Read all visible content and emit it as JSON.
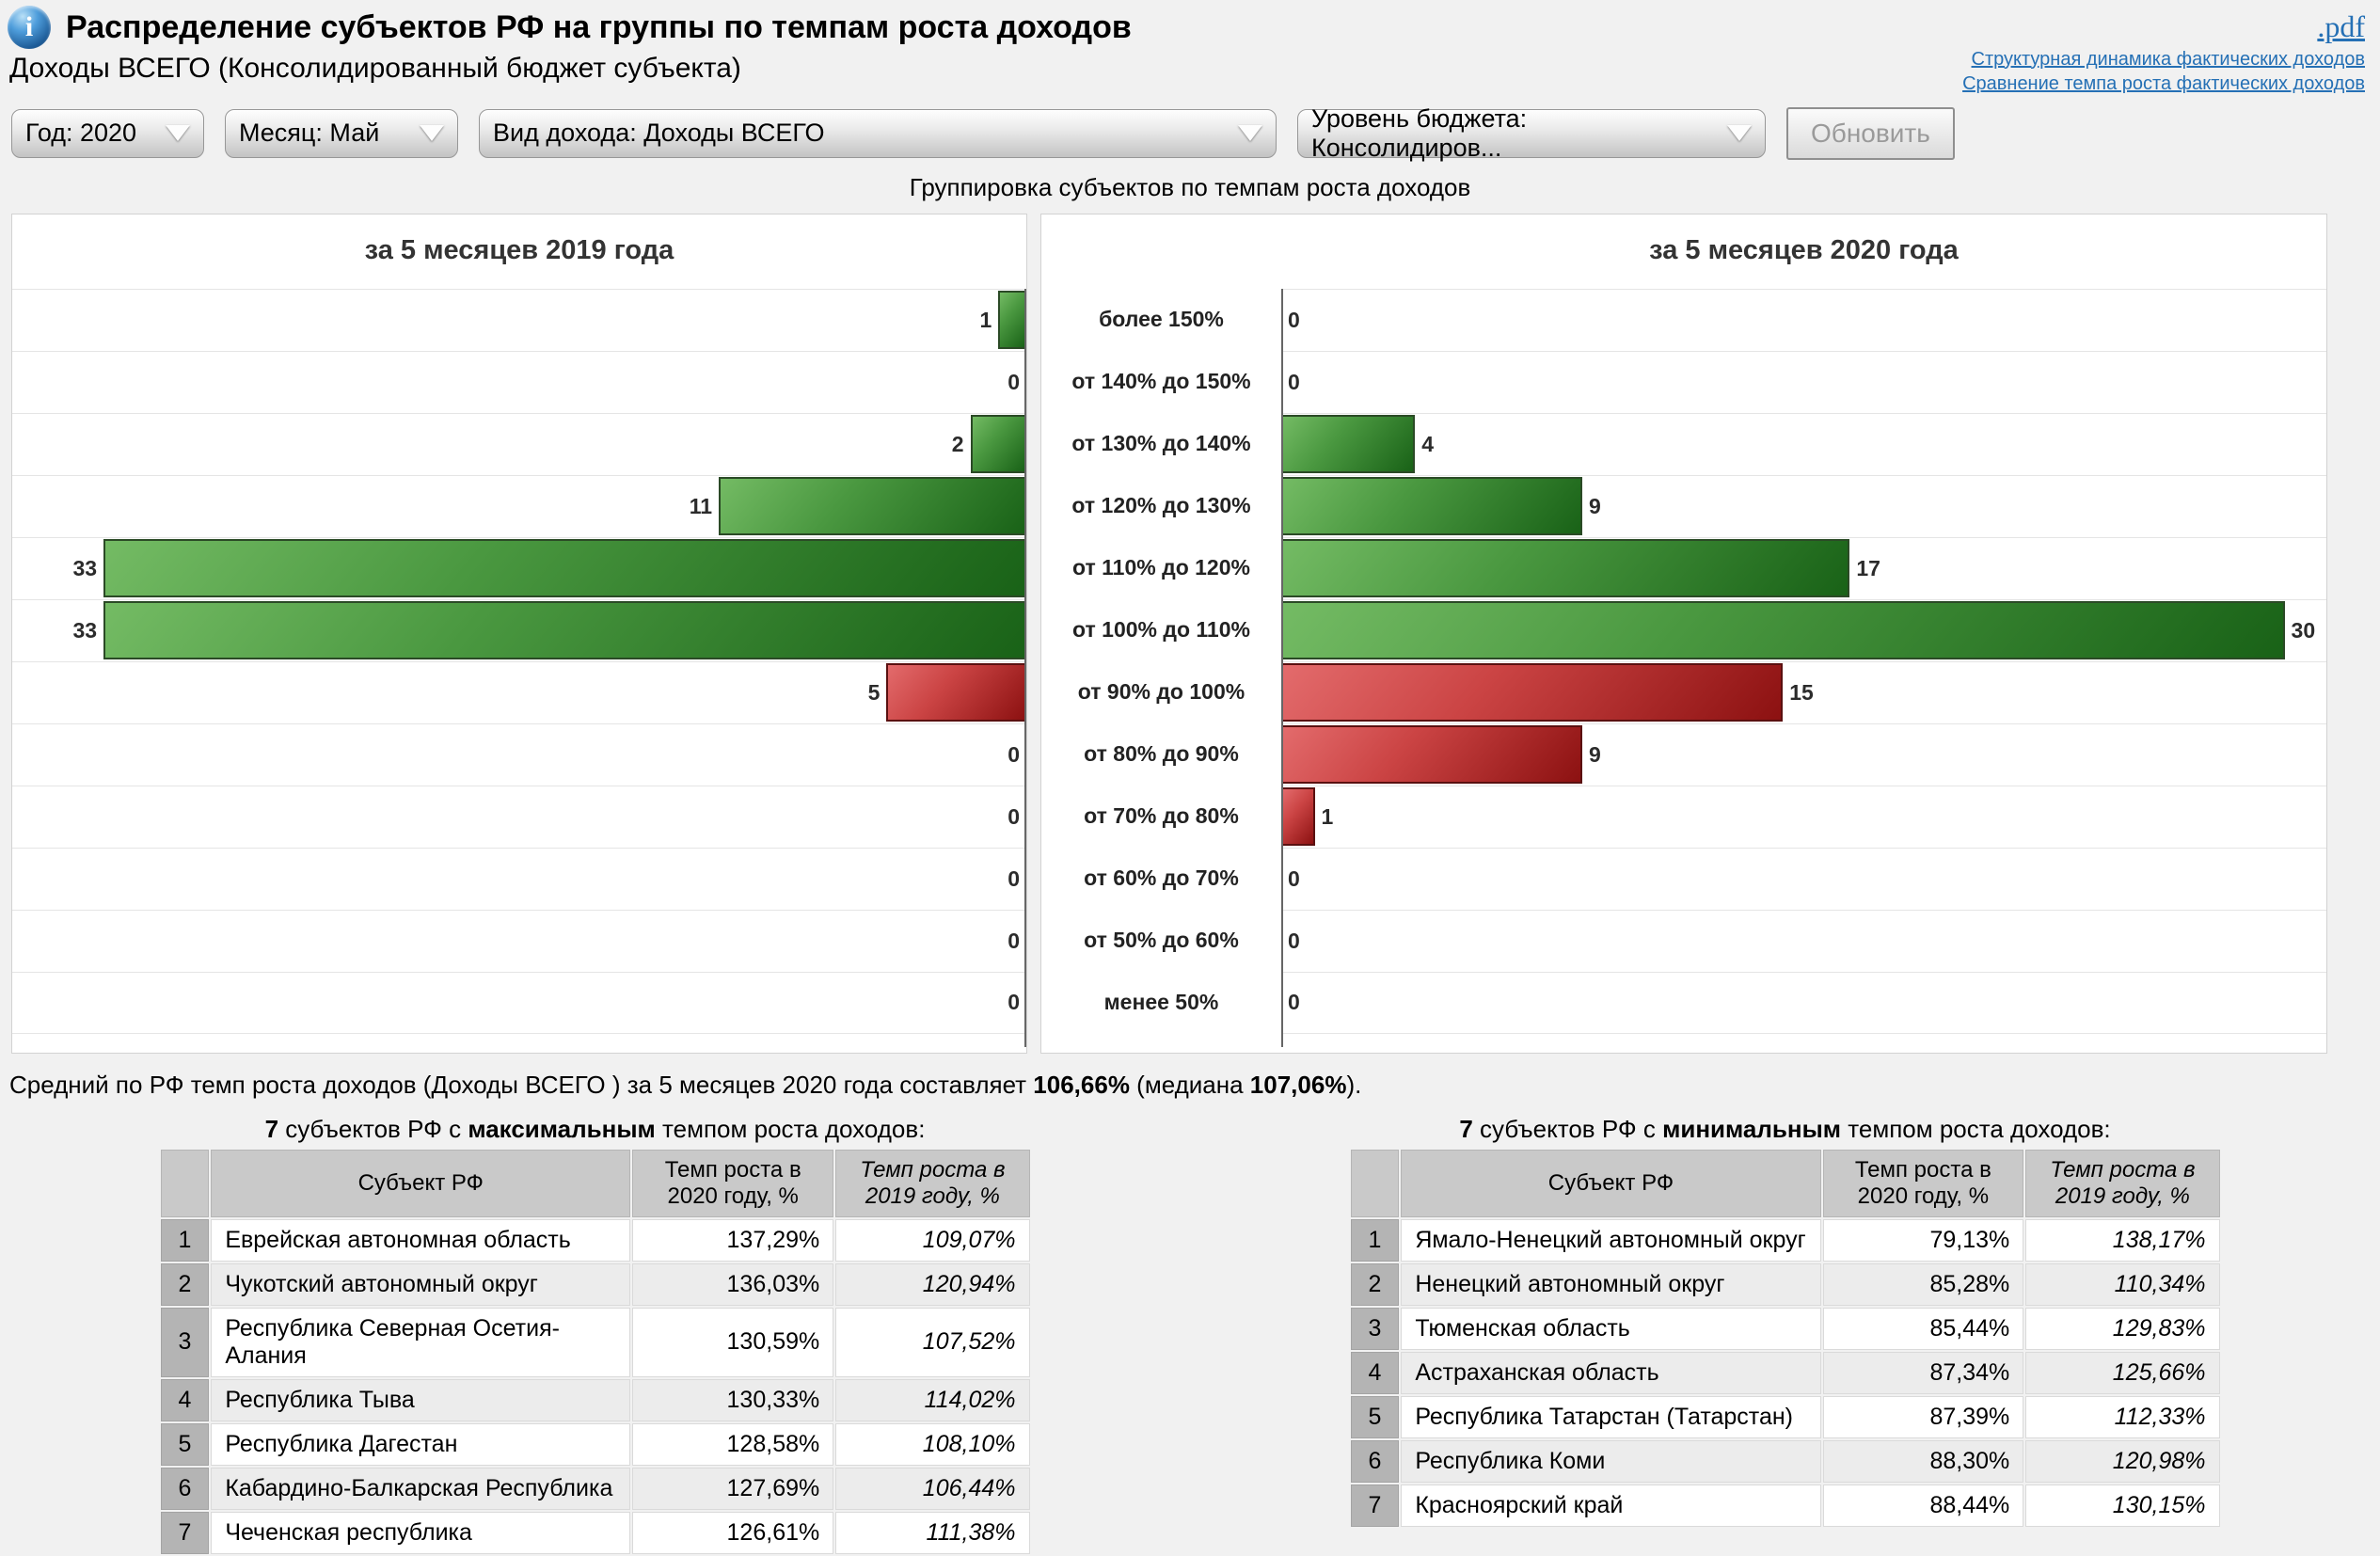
{
  "icons": {
    "info": "i",
    "chevron": "▼"
  },
  "header": {
    "title": "Распределение субъектов РФ на группы по темпам роста доходов",
    "subtitle": "Доходы ВСЕГО (Консолидированный бюджет субъекта)",
    "pdf_label": ".pdf",
    "links": [
      "Структурная динамика фактических доходов",
      "Сравнение темпа роста фактических доходов"
    ]
  },
  "filters": {
    "year": "Год: 2020",
    "month": "Месяц: Май",
    "income_type": "Вид дохода: Доходы ВСЕГО",
    "budget_level": "Уровень бюджета: Консолидиров...",
    "refresh_label": "Обновить"
  },
  "section_title": "Группировка субъектов по темпам роста доходов",
  "chart_data": {
    "type": "bar",
    "orientation": "horizontal-mirrored",
    "categories": [
      "более 150%",
      "от 140% до 150%",
      "от 130% до 140%",
      "от 120% до 130%",
      "от 110% до 120%",
      "от 100% до 110%",
      "от 90% до 100%",
      "от 80% до 90%",
      "от 70% до 80%",
      "от 60% до 70%",
      "от 50% до 60%",
      "менее 50%"
    ],
    "positive_categories_count": 6,
    "positive_color": "#3c8f33",
    "negative_color": "#b22222",
    "grid": true,
    "series": [
      {
        "name": "за 5 месяцев 2019 года",
        "direction": "left",
        "values": [
          1,
          0,
          2,
          11,
          33,
          33,
          5,
          0,
          0,
          0,
          0,
          0
        ]
      },
      {
        "name": "за 5 месяцев 2020 года",
        "direction": "right",
        "values": [
          0,
          0,
          4,
          9,
          17,
          30,
          15,
          9,
          1,
          0,
          0,
          0
        ]
      }
    ]
  },
  "summary": {
    "prefix": "Средний по РФ темп роста доходов (Доходы ВСЕГО ) за 5 месяцев 2020 года составляет ",
    "average": "106,66%",
    "median_label": " (медиана ",
    "median": "107,06%",
    "suffix": ")."
  },
  "tables": [
    {
      "title": {
        "count": "7",
        "mid1": " субъектов РФ с ",
        "emph": "максимальным",
        "mid2": " темпом роста доходов:"
      },
      "columns": [
        "",
        "Субъект РФ",
        "Темп роста в 2020 году, %",
        "Темп роста в 2019 году, %"
      ],
      "rows": [
        [
          "1",
          "Еврейская автономная область",
          "137,29%",
          "109,07%"
        ],
        [
          "2",
          "Чукотский автономный округ",
          "136,03%",
          "120,94%"
        ],
        [
          "3",
          "Республика Северная Осетия-Алания",
          "130,59%",
          "107,52%"
        ],
        [
          "4",
          "Республика Тыва",
          "130,33%",
          "114,02%"
        ],
        [
          "5",
          "Республика Дагестан",
          "128,58%",
          "108,10%"
        ],
        [
          "6",
          "Кабардино-Балкарская Республика",
          "127,69%",
          "106,44%"
        ],
        [
          "7",
          "Чеченская республика",
          "126,61%",
          "111,38%"
        ]
      ]
    },
    {
      "title": {
        "count": "7",
        "mid1": " субъектов РФ с ",
        "emph": "минимальным",
        "mid2": " темпом роста доходов:"
      },
      "columns": [
        "",
        "Субъект РФ",
        "Темп роста в 2020 году, %",
        "Темп роста в 2019 году, %"
      ],
      "rows": [
        [
          "1",
          "Ямало-Ненецкий автономный округ",
          "79,13%",
          "138,17%"
        ],
        [
          "2",
          "Ненецкий автономный округ",
          "85,28%",
          "110,34%"
        ],
        [
          "3",
          "Тюменская область",
          "85,44%",
          "129,83%"
        ],
        [
          "4",
          "Астраханская область",
          "87,34%",
          "125,66%"
        ],
        [
          "5",
          "Республика Татарстан (Татарстан)",
          "87,39%",
          "112,33%"
        ],
        [
          "6",
          "Республика Коми",
          "88,30%",
          "120,98%"
        ],
        [
          "7",
          "Красноярский край",
          "88,44%",
          "130,15%"
        ]
      ]
    }
  ]
}
